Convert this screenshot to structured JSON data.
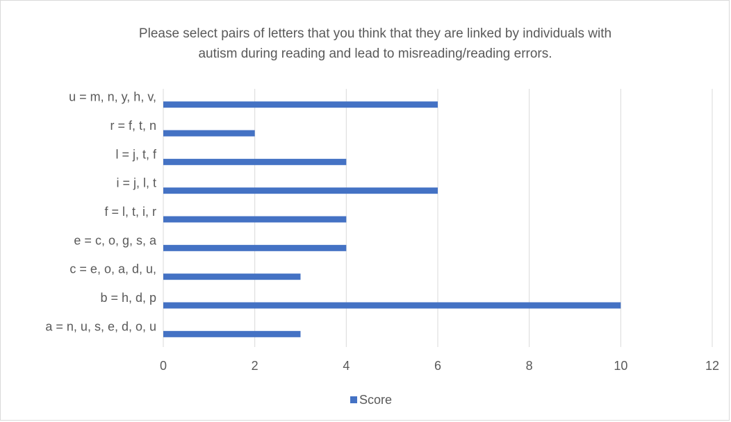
{
  "colors": {
    "bar": "#4472c4",
    "grid": "#d9d9d9",
    "text": "#595959"
  },
  "chart_data": {
    "type": "bar",
    "orientation": "horizontal",
    "title_line1": "Please select pairs of letters that you think that they are linked by individuals with",
    "title_line2": "autism during reading and lead to misreading/reading errors.",
    "categories": [
      "a = n, u, s, e, d, o, u",
      "b = h, d, p",
      "c = e, o, a, d, u,",
      "e = c, o, g, s, a",
      "f = l, t, i, r",
      "i = j, l, t",
      "l = j, t, f",
      "r = f, t, n",
      "u = m, n, y, h, v,"
    ],
    "series": [
      {
        "name": "Score",
        "values": [
          3,
          10,
          3,
          4,
          4,
          6,
          4,
          2,
          6
        ]
      }
    ],
    "xlim": [
      0,
      12
    ],
    "xticks": [
      0,
      2,
      4,
      6,
      8,
      10,
      12
    ],
    "grid": true,
    "legend_position": "bottom",
    "xlabel": "",
    "ylabel": ""
  }
}
